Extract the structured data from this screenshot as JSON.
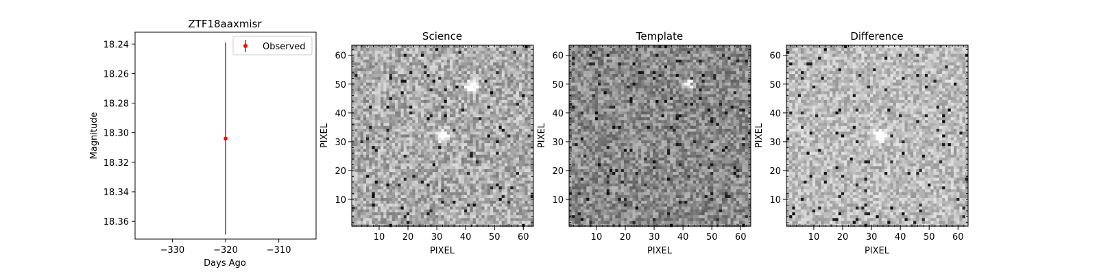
{
  "chart_data": [
    {
      "type": "scatter",
      "title": "ZTF18aaxmisr",
      "xlabel": "Days Ago",
      "ylabel": "Magnitude",
      "xlim": [
        -337,
        -303
      ],
      "ylim": [
        18.372,
        18.232
      ],
      "y_inverted": true,
      "xticks": [
        -330,
        -320,
        -310
      ],
      "xtick_labels": [
        "−330",
        "−320",
        "−310"
      ],
      "yticks": [
        18.24,
        18.26,
        18.28,
        18.3,
        18.32,
        18.34,
        18.36
      ],
      "ytick_labels": [
        "18.24",
        "18.26",
        "18.28",
        "18.30",
        "18.32",
        "18.34",
        "18.36"
      ],
      "legend": "top-right",
      "legend_label": "Observed",
      "color": "#ff0000",
      "series": [
        {
          "name": "Observed",
          "x": [
            -320
          ],
          "y": [
            18.304
          ],
          "yerr_low": [
            18.369
          ],
          "yerr_high": [
            18.239
          ]
        }
      ]
    },
    {
      "type": "heatmap",
      "title": "Science",
      "xlabel": "PIXEL",
      "ylabel": "PIXEL",
      "xlim": [
        0.5,
        63.5
      ],
      "ylim": [
        0.5,
        63.5
      ],
      "xticks": [
        10,
        20,
        30,
        40,
        50,
        60
      ],
      "xtick_labels": [
        "10",
        "20",
        "30",
        "40",
        "50",
        "60"
      ],
      "yticks": [
        10,
        20,
        30,
        40,
        50,
        60
      ],
      "ytick_labels": [
        "10",
        "20",
        "30",
        "40",
        "50",
        "60"
      ],
      "grid_size": 63,
      "colormap": "gray",
      "bright_sources": [
        {
          "x": 32,
          "y": 32
        },
        {
          "x": 42,
          "y": 49
        }
      ]
    },
    {
      "type": "heatmap",
      "title": "Template",
      "xlabel": "PIXEL",
      "ylabel": "PIXEL",
      "xlim": [
        0.5,
        63.5
      ],
      "ylim": [
        0.5,
        63.5
      ],
      "xticks": [
        10,
        20,
        30,
        40,
        50,
        60
      ],
      "xtick_labels": [
        "10",
        "20",
        "30",
        "40",
        "50",
        "60"
      ],
      "yticks": [
        10,
        20,
        30,
        40,
        50,
        60
      ],
      "ytick_labels": [
        "10",
        "20",
        "30",
        "40",
        "50",
        "60"
      ],
      "grid_size": 63,
      "colormap": "gray",
      "bright_sources": [
        {
          "x": 42,
          "y": 50
        }
      ]
    },
    {
      "type": "heatmap",
      "title": "Difference",
      "xlabel": "PIXEL",
      "ylabel": "PIXEL",
      "xlim": [
        0.5,
        63.5
      ],
      "ylim": [
        0.5,
        63.5
      ],
      "xticks": [
        10,
        20,
        30,
        40,
        50,
        60
      ],
      "xtick_labels": [
        "10",
        "20",
        "30",
        "40",
        "50",
        "60"
      ],
      "yticks": [
        10,
        20,
        30,
        40,
        50,
        60
      ],
      "ytick_labels": [
        "10",
        "20",
        "30",
        "40",
        "50",
        "60"
      ],
      "grid_size": 63,
      "colormap": "gray",
      "bright_sources": [
        {
          "x": 33,
          "y": 32
        }
      ]
    }
  ]
}
